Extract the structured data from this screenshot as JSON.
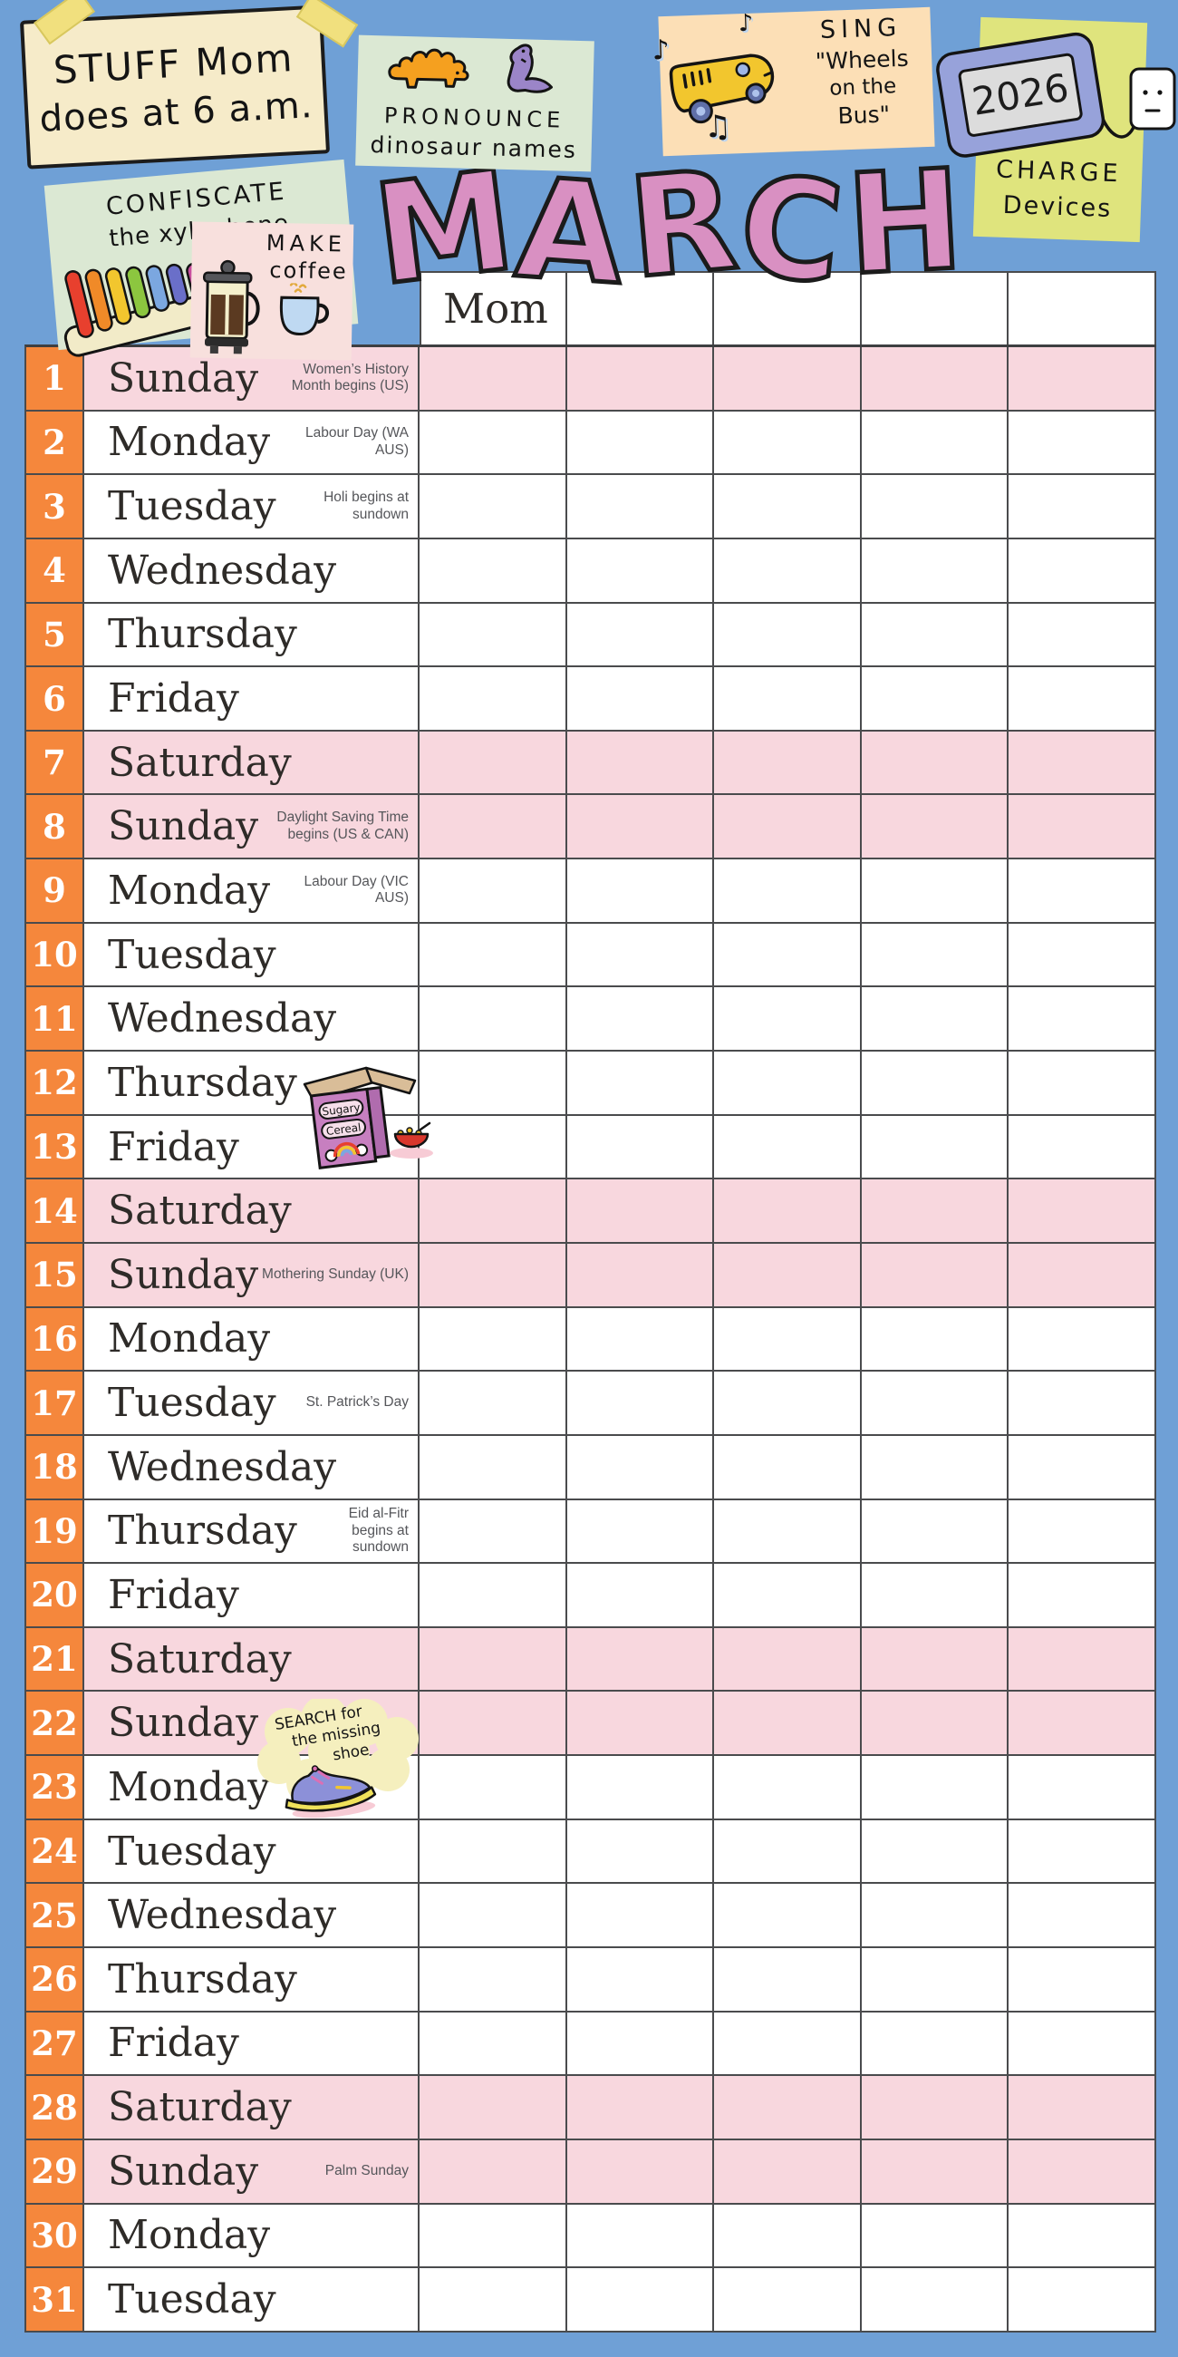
{
  "calendar": {
    "title": "MARCH",
    "header": {
      "columns": [
        "Mom",
        "",
        "",
        "",
        ""
      ]
    },
    "rows": [
      {
        "num": "1",
        "day": "Sunday",
        "holiday": "Women’s History\nMonth begins (US)",
        "weekend": true
      },
      {
        "num": "2",
        "day": "Monday",
        "holiday": "Labour Day (WA AUS)",
        "weekend": false
      },
      {
        "num": "3",
        "day": "Tuesday",
        "holiday": "Holi begins at sundown",
        "weekend": false
      },
      {
        "num": "4",
        "day": "Wednesday",
        "holiday": "",
        "weekend": false
      },
      {
        "num": "5",
        "day": "Thursday",
        "holiday": "",
        "weekend": false
      },
      {
        "num": "6",
        "day": "Friday",
        "holiday": "",
        "weekend": false
      },
      {
        "num": "7",
        "day": "Saturday",
        "holiday": "",
        "weekend": true
      },
      {
        "num": "8",
        "day": "Sunday",
        "holiday": "Daylight Saving Time\nbegins (US & CAN)",
        "weekend": true
      },
      {
        "num": "9",
        "day": "Monday",
        "holiday": "Labour Day (VIC AUS)",
        "weekend": false
      },
      {
        "num": "10",
        "day": "Tuesday",
        "holiday": "",
        "weekend": false
      },
      {
        "num": "11",
        "day": "Wednesday",
        "holiday": "",
        "weekend": false
      },
      {
        "num": "12",
        "day": "Thursday",
        "holiday": "",
        "weekend": false
      },
      {
        "num": "13",
        "day": "Friday",
        "holiday": "",
        "weekend": false
      },
      {
        "num": "14",
        "day": "Saturday",
        "holiday": "",
        "weekend": true
      },
      {
        "num": "15",
        "day": "Sunday",
        "holiday": "Mothering Sunday (UK)",
        "weekend": true
      },
      {
        "num": "16",
        "day": "Monday",
        "holiday": "",
        "weekend": false
      },
      {
        "num": "17",
        "day": "Tuesday",
        "holiday": "St. Patrick’s Day",
        "weekend": false
      },
      {
        "num": "18",
        "day": "Wednesday",
        "holiday": "",
        "weekend": false
      },
      {
        "num": "19",
        "day": "Thursday",
        "holiday": "Eid al-Fitr\nbegins at sundown",
        "weekend": false
      },
      {
        "num": "20",
        "day": "Friday",
        "holiday": "",
        "weekend": false
      },
      {
        "num": "21",
        "day": "Saturday",
        "holiday": "",
        "weekend": true
      },
      {
        "num": "22",
        "day": "Sunday",
        "holiday": "",
        "weekend": true
      },
      {
        "num": "23",
        "day": "Monday",
        "holiday": "",
        "weekend": false
      },
      {
        "num": "24",
        "day": "Tuesday",
        "holiday": "",
        "weekend": false
      },
      {
        "num": "25",
        "day": "Wednesday",
        "holiday": "",
        "weekend": false
      },
      {
        "num": "26",
        "day": "Thursday",
        "holiday": "",
        "weekend": false
      },
      {
        "num": "27",
        "day": "Friday",
        "holiday": "",
        "weekend": false
      },
      {
        "num": "28",
        "day": "Saturday",
        "holiday": "",
        "weekend": true
      },
      {
        "num": "29",
        "day": "Sunday",
        "holiday": "Palm Sunday",
        "weekend": true
      },
      {
        "num": "30",
        "day": "Monday",
        "holiday": "",
        "weekend": false
      },
      {
        "num": "31",
        "day": "Tuesday",
        "holiday": "",
        "weekend": false
      }
    ]
  },
  "notes": {
    "stuff": {
      "line1": "STUFF Mom",
      "line2": "does at 6 a.m."
    },
    "pronounce": {
      "line1": "PRONOUNCE",
      "line2": "dinosaur names"
    },
    "sing": {
      "line1": "SING",
      "line2": "\"Wheels",
      "line3": "on the",
      "line4": "Bus\"",
      "note_glyph1": "♪",
      "note_glyph2": "♫",
      "note_glyph3": "♪"
    },
    "charge": {
      "line1": "CHARGE",
      "line2": "Devices",
      "device_year": "2026"
    },
    "confiscate": {
      "line1": "CONFISCATE",
      "line2": "the xylophone"
    },
    "coffee": {
      "line1": "MAKE",
      "line2": "coffee"
    },
    "cereal": {
      "label1": "Sugary",
      "label2": "Cereal"
    },
    "shoe": {
      "line1": "SEARCH for",
      "line2": "the missing",
      "line3": "shoe"
    }
  },
  "colors": {
    "background": "#6FA0D6",
    "weekend_row": "#F8D7DE",
    "number_column": "#F5873C",
    "title_pink": "#D990C2",
    "grid_line": "#4A4B4D",
    "holiday_text": "#55565A"
  }
}
